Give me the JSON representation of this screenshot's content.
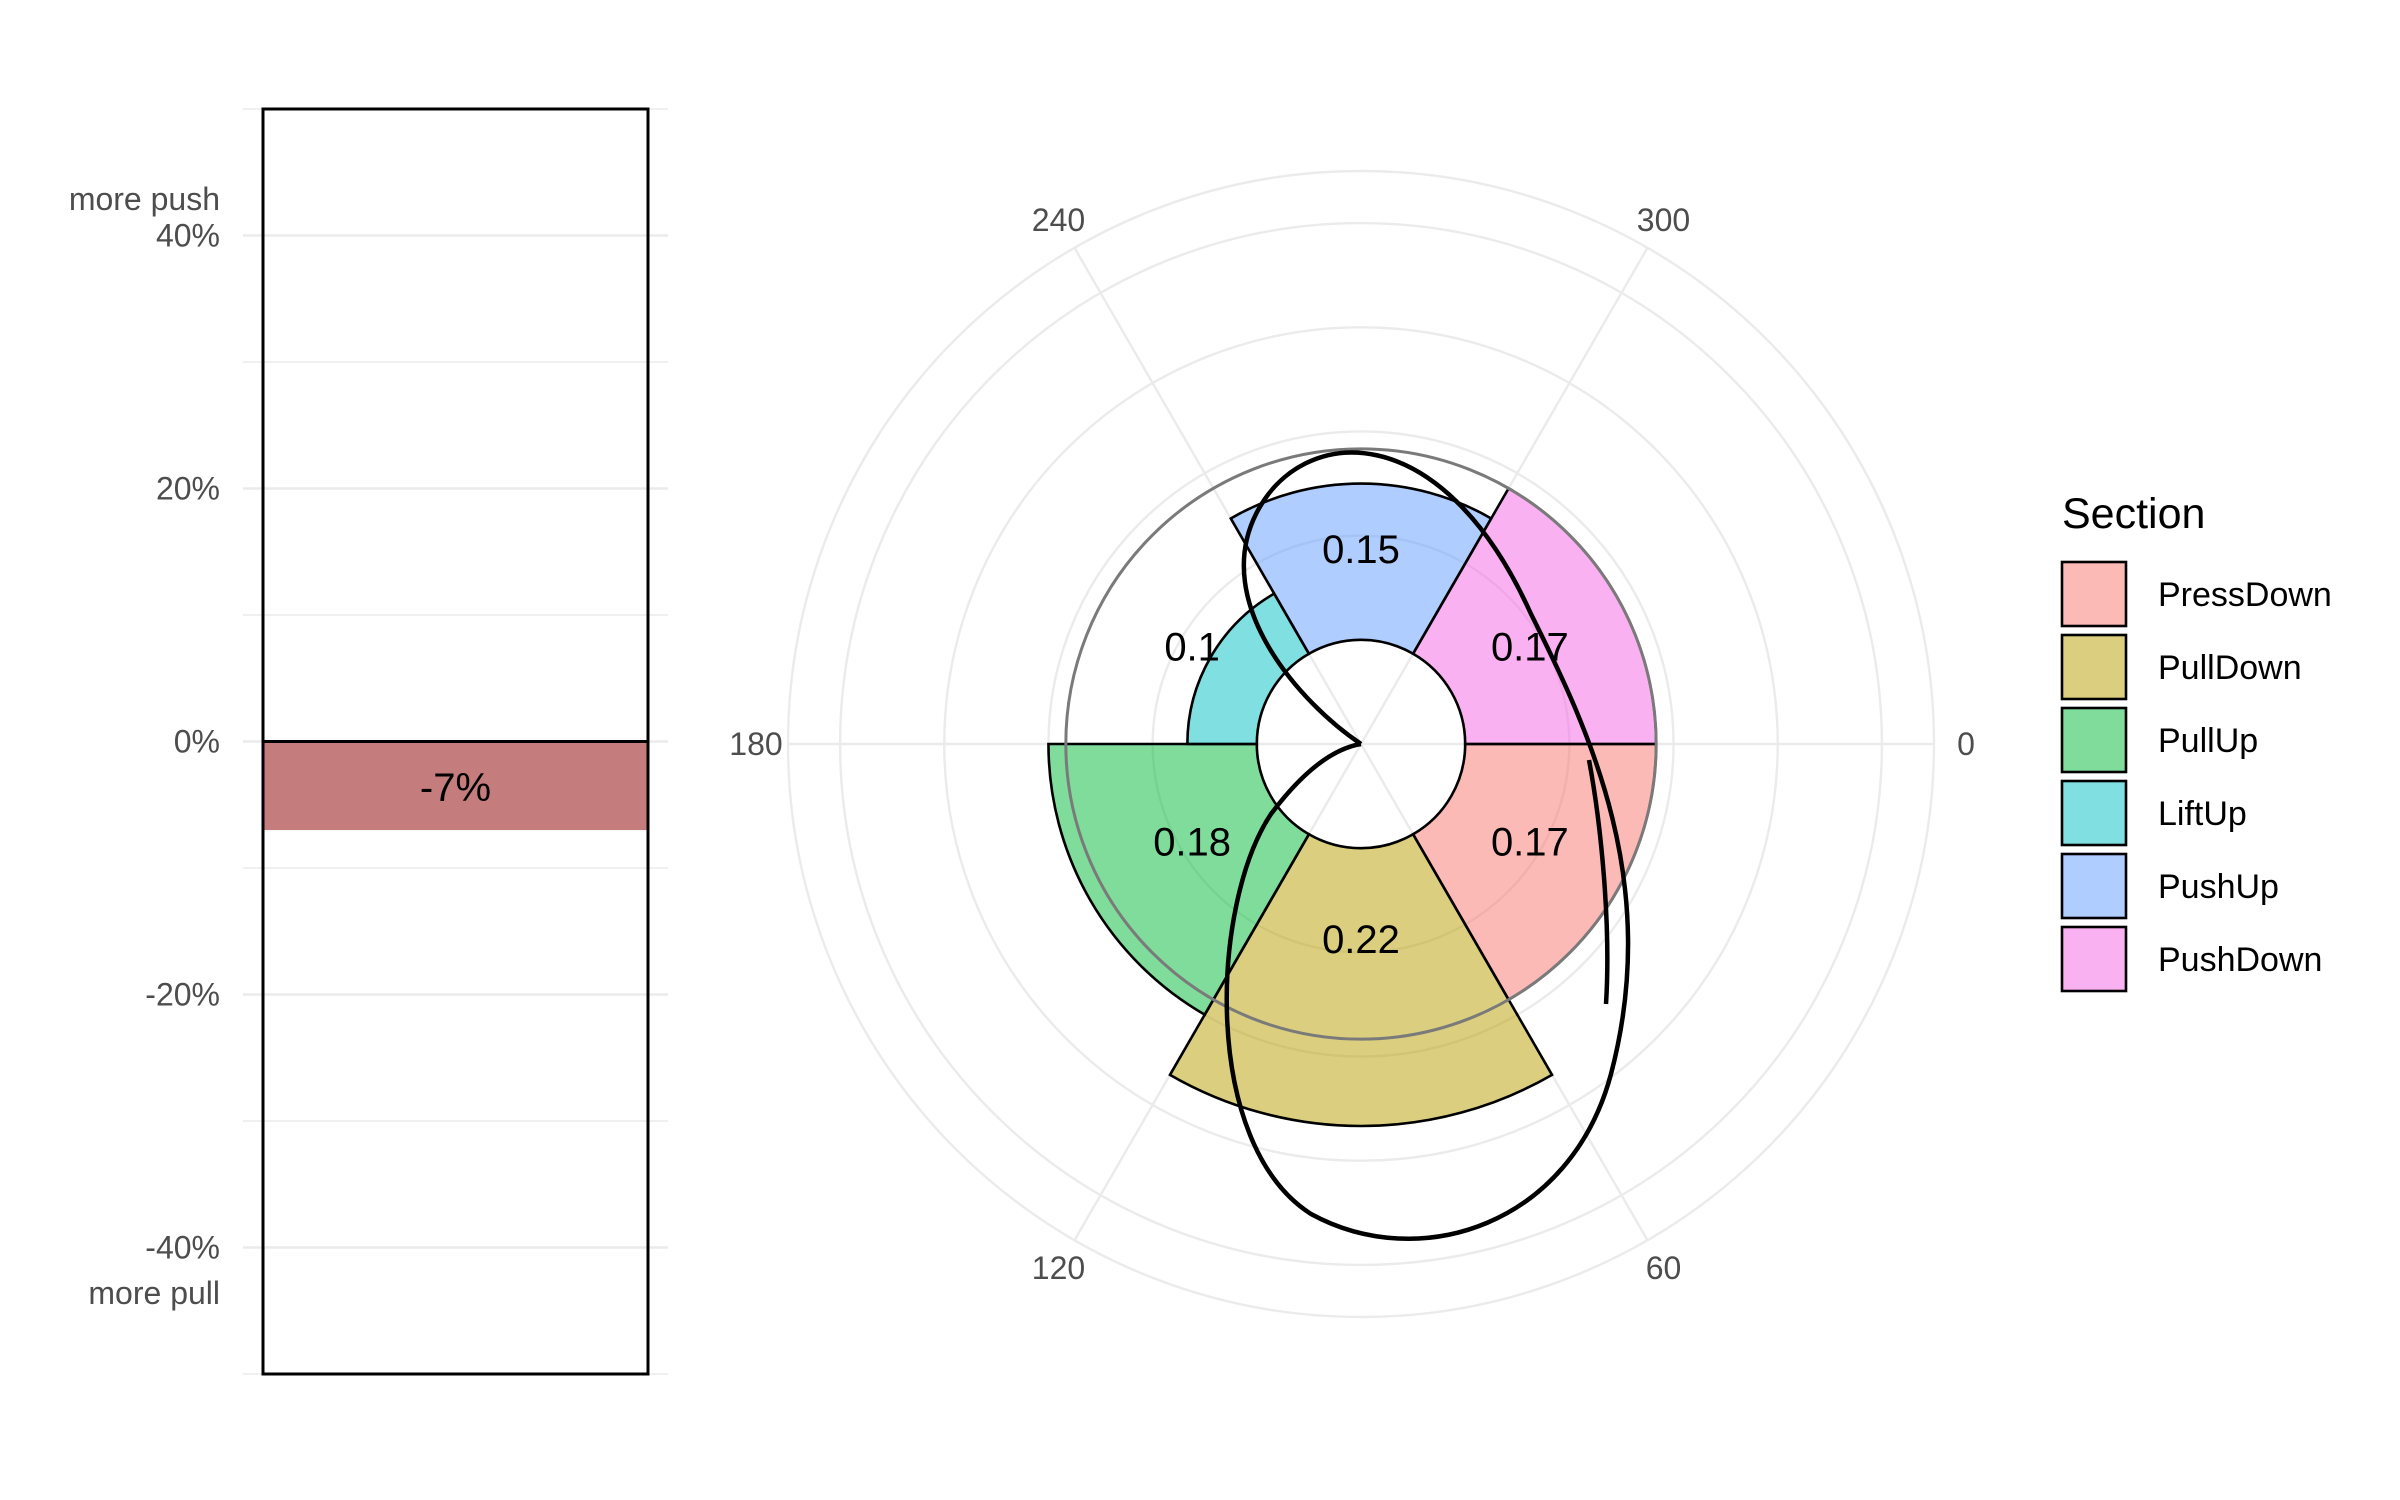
{
  "chart_data": [
    {
      "type": "bar",
      "y_ticks": [
        40,
        20,
        0,
        -20,
        -40
      ],
      "y_tick_labels": [
        "40%",
        "20%",
        "0%",
        "-20%",
        "-40%"
      ],
      "y_top_label": "more push",
      "y_bottom_label": "more pull",
      "ylim": [
        -50,
        50
      ],
      "values": [
        -7
      ],
      "value_labels": [
        "-7%"
      ],
      "bar_color": "#c47c7c"
    },
    {
      "type": "polar_bar",
      "angle_ticks": [
        0,
        60,
        120,
        180,
        240,
        300
      ],
      "angle_tick_labels": [
        "0",
        "60",
        "120",
        "180",
        "240",
        "300"
      ],
      "radial_range": [
        0,
        0.33
      ],
      "inner_radius": 0.06,
      "radial_grid": [
        0.06,
        0.12,
        0.18,
        0.24,
        0.3
      ],
      "sections": [
        {
          "name": "PressDown",
          "start": 0,
          "end": 60,
          "value": 0.17,
          "label": "0.17",
          "color": "#f8766d"
        },
        {
          "name": "PullDown",
          "start": 60,
          "end": 120,
          "value": 0.22,
          "label": "0.22",
          "color": "#b79f00"
        },
        {
          "name": "PullUp",
          "start": 120,
          "end": 180,
          "value": 0.18,
          "label": "0.18",
          "color": "#00ba38"
        },
        {
          "name": "LiftUp",
          "start": 180,
          "end": 240,
          "value": 0.1,
          "label": "0.1",
          "color": "#00bfc4"
        },
        {
          "name": "PushUp",
          "start": 240,
          "end": 300,
          "value": 0.15,
          "label": "0.15",
          "color": "#619cff"
        },
        {
          "name": "PushDown",
          "start": 300,
          "end": 360,
          "value": 0.17,
          "label": "0.17",
          "color": "#f564e3"
        }
      ],
      "reference_circle_value": 0.17,
      "legend": {
        "title": "Section",
        "entries": [
          "PressDown",
          "PullDown",
          "PullUp",
          "LiftUp",
          "PushUp",
          "PushDown"
        ]
      }
    }
  ]
}
